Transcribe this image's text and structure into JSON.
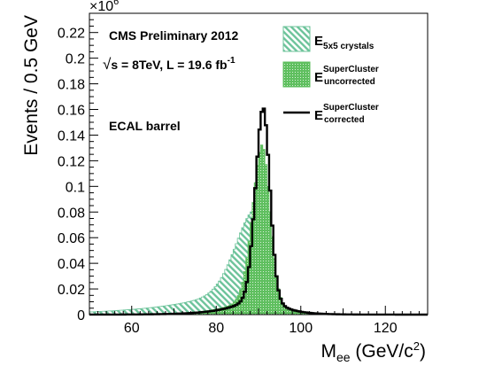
{
  "chart_data": {
    "type": "area",
    "xlabel": {
      "main": "M",
      "sub": "ee",
      "unit_pre": " (GeV/c",
      "unit_sup": "2",
      "unit_post": ")"
    },
    "ylabel": "Events / 0.5 GeV",
    "y_multiplier": {
      "base": "×10",
      "exp": "6"
    },
    "xlim": [
      50,
      130
    ],
    "ylim": [
      0,
      0.235
    ],
    "x_ticks": [
      60,
      80,
      100,
      120
    ],
    "x_tick_labels": [
      "60",
      "80",
      "100",
      "120"
    ],
    "y_ticks": [
      0,
      0.02,
      0.04,
      0.06,
      0.08,
      0.1,
      0.12,
      0.14,
      0.16,
      0.18,
      0.2,
      0.22
    ],
    "y_tick_labels": [
      "0",
      "0.02",
      "0.04",
      "0.06",
      "0.08",
      "0.1",
      "0.12",
      "0.14",
      "0.16",
      "0.18",
      "0.2",
      "0.22"
    ],
    "grid": false,
    "legend_position": "top-right",
    "annotations": {
      "line1": "CMS Preliminary 2012",
      "line2_root": "√",
      "line2_main": "s = 8TeV, L = 19.6 fb",
      "line2_sup": "-1",
      "line3": "ECAL barrel"
    },
    "series": [
      {
        "name": "E 5x5 crystals",
        "legend_main": "E",
        "legend_sub": "5x5 crystals",
        "color": "#6cc39a",
        "peak_x": 89.2,
        "peak_y": 0.083,
        "sigma_left": 4.6,
        "sigma_right": 1.9,
        "tail_left": 15,
        "tail_right": 3,
        "tail_frac": 0.34,
        "x": [
          50,
          60,
          70,
          75,
          80,
          84,
          86,
          88,
          89,
          90,
          91,
          92,
          93,
          95,
          100,
          105,
          110,
          130
        ],
        "values": [
          0.001,
          0.005,
          0.014,
          0.022,
          0.038,
          0.058,
          0.069,
          0.08,
          0.083,
          0.081,
          0.07,
          0.055,
          0.04,
          0.022,
          0.006,
          0.003,
          0.002,
          0.0005
        ]
      },
      {
        "name": "E SuperCluster uncorrected",
        "legend_main": "E",
        "legend_sup": "SuperCluster",
        "legend_sub": "uncorrected",
        "color": "#5fbf5f",
        "peak_x": 90.9,
        "peak_y": 0.133,
        "sigma_left": 2.3,
        "sigma_right": 1.85,
        "tail_left": 6.5,
        "tail_right": 3.5,
        "tail_frac": 0.17,
        "x": [
          50,
          60,
          70,
          80,
          85,
          88,
          89,
          90,
          91,
          92,
          93,
          95,
          100,
          105,
          110,
          130
        ],
        "values": [
          0.0005,
          0.002,
          0.005,
          0.015,
          0.028,
          0.055,
          0.085,
          0.12,
          0.133,
          0.12,
          0.09,
          0.045,
          0.01,
          0.004,
          0.002,
          0.0005
        ]
      },
      {
        "name": "E SuperCluster corrected",
        "legend_main": "E",
        "legend_sup": "SuperCluster",
        "legend_sub": "corrected",
        "color": "#000000",
        "peak_x": 91.1,
        "peak_y": 0.162,
        "sigma_left": 1.8,
        "sigma_right": 1.6,
        "tail_left": 6.0,
        "tail_right": 4.0,
        "tail_frac": 0.13,
        "x": [
          50,
          60,
          70,
          80,
          85,
          88,
          89,
          90,
          91,
          92,
          93,
          95,
          100,
          105,
          110,
          130
        ],
        "values": [
          0.0008,
          0.0025,
          0.0055,
          0.013,
          0.024,
          0.05,
          0.085,
          0.14,
          0.162,
          0.14,
          0.09,
          0.04,
          0.009,
          0.004,
          0.0025,
          0.0008
        ]
      }
    ]
  }
}
